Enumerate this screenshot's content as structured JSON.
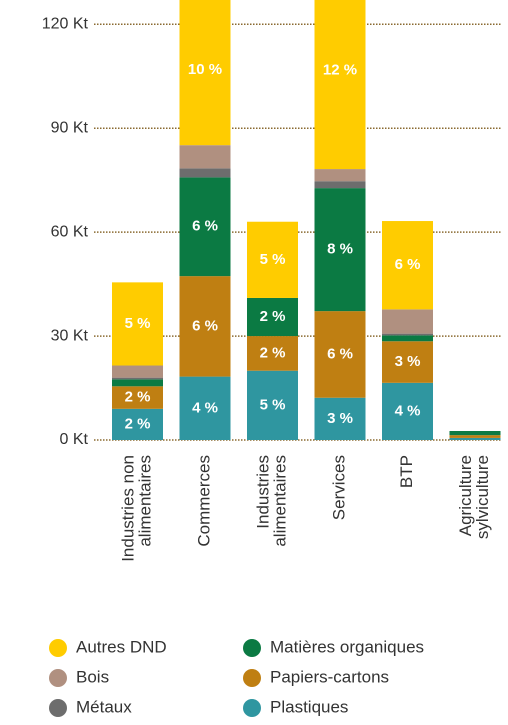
{
  "chart_data": {
    "type": "stacked_bar",
    "categories": [
      [
        "Industries non",
        "alimentaires"
      ],
      [
        "Commerces"
      ],
      [
        "Industries",
        "alimentaires"
      ],
      [
        "Services"
      ],
      [
        "BTP"
      ],
      [
        "Agriculture",
        "sylviculture"
      ]
    ],
    "ylim": [
      0,
      127
    ],
    "yticks": [
      {
        "value": 0,
        "label": "0 Kt"
      },
      {
        "value": 30,
        "label": "30 Kt"
      },
      {
        "value": 60,
        "label": "60 Kt"
      },
      {
        "value": 90,
        "label": "90 Kt"
      },
      {
        "value": 120,
        "label": "120 Kt"
      }
    ],
    "grid": true,
    "series": [
      {
        "name": "Plastiques",
        "color": "#2f96a0",
        "values": [
          9,
          18.3,
          20,
          12.2,
          16.5,
          0.6
        ],
        "percent_labels": [
          "2 %",
          "4 %",
          "5 %",
          "3 %",
          "4 %",
          null
        ]
      },
      {
        "name": "Papiers-cartons",
        "color": "#bf7f12",
        "values": [
          6.5,
          29,
          10,
          25,
          12,
          0.8
        ],
        "percent_labels": [
          "2 %",
          "6 %",
          "2 %",
          "6 %",
          "3 %",
          null
        ]
      },
      {
        "name": "Matières organiques",
        "color": "#0b7a43",
        "values": [
          2,
          28.5,
          11,
          35.5,
          1.7,
          1.2
        ],
        "percent_labels": [
          null,
          "6 %",
          "2 %",
          "8 %",
          null,
          null
        ]
      },
      {
        "name": "Métaux",
        "color": "#6d6d6d",
        "values": [
          0.5,
          2.6,
          0,
          2,
          0.5,
          0
        ],
        "percent_labels": [
          null,
          null,
          null,
          null,
          null,
          null
        ]
      },
      {
        "name": "Bois",
        "color": "#b09080",
        "values": [
          3.5,
          6.7,
          0,
          3.5,
          7,
          0
        ],
        "percent_labels": [
          null,
          null,
          null,
          null,
          null,
          null
        ]
      },
      {
        "name": "Autres DND",
        "color": "#ffcc00",
        "values": [
          24,
          50,
          22,
          57,
          25.5,
          0
        ],
        "percent_labels": [
          "5 %",
          "10 %",
          "5 %",
          "12 %",
          "6 %",
          null
        ]
      }
    ],
    "legend_order": [
      5,
      2,
      4,
      1,
      3,
      0
    ]
  }
}
